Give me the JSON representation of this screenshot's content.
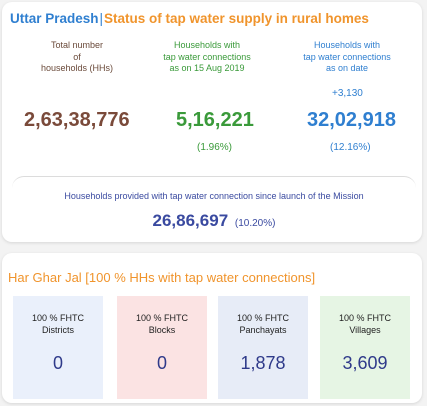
{
  "header": {
    "state": "Uttar Pradesh",
    "separator": "|",
    "subtitle": "Status of tap water supply in rural homes"
  },
  "stats": {
    "total": {
      "label_line1": "Total number",
      "label_line2": "of",
      "label_line3": "households (HHs)",
      "value": "2,63,38,776"
    },
    "aug2019": {
      "label_line1": "Households with",
      "label_line2": "tap water connections",
      "label_line3": "as on 15 Aug 2019",
      "value": "5,16,221",
      "percent": "(1.96%)"
    },
    "current": {
      "label_line1": "Households with",
      "label_line2": "tap water connections",
      "label_line3": "as on date",
      "increment": "+3,130",
      "value": "32,02,918",
      "percent": "(12.16%)"
    }
  },
  "mission": {
    "label": "Households provided with tap water connection since launch of the Mission",
    "value": "26,86,697",
    "percent": "(10.20%)"
  },
  "har_ghar_jal": {
    "title": "Har Ghar Jal [100 % HHs with tap water connections]",
    "tiles": [
      {
        "label_line1": "100 % FHTC",
        "label_line2": "Districts",
        "value": "0"
      },
      {
        "label_line1": "100 % FHTC",
        "label_line2": "Blocks",
        "value": "0"
      },
      {
        "label_line1": "100 % FHTC",
        "label_line2": "Panchayats",
        "value": "1,878"
      },
      {
        "label_line1": "100 % FHTC",
        "label_line2": "Villages",
        "value": "3,609"
      }
    ]
  },
  "colors": {
    "accent_blue": "#2f7fd0",
    "accent_orange": "#f0942c",
    "green": "#3a9a3a",
    "brown": "#7a4a3a",
    "navy": "#3a4aa0"
  }
}
